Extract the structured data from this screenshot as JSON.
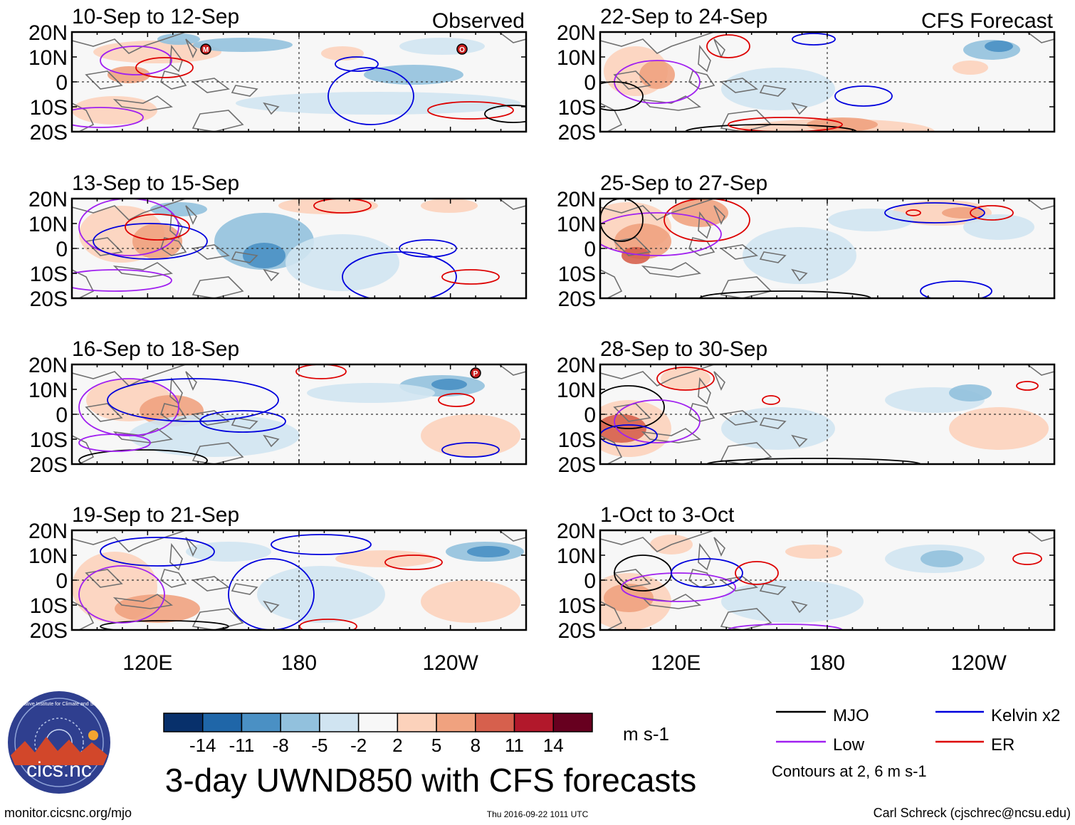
{
  "title": "3-day UWND850 with CFS forecasts",
  "footer": {
    "website": "monitor.cicsnc.org/mjo",
    "timestamp": "Thu 2016-09-22 1011 UTC",
    "author": "Carl Schreck (cjschrec@ncsu.edu)"
  },
  "logo": {
    "name": "cics.nc",
    "ring_text": "Cooperative Institute for Climate and Satellites"
  },
  "colorbar": {
    "unit": "m s-1",
    "tick_labels": [
      "-14",
      "-11",
      "-8",
      "-5",
      "-2",
      "2",
      "5",
      "8",
      "11",
      "14"
    ],
    "bins": [
      "#08306b",
      "#1f66a8",
      "#4a90c4",
      "#92c1dd",
      "#d0e4f1",
      "#f7f7f7",
      "#fcd2bb",
      "#f0a27f",
      "#d6604d",
      "#b2182b",
      "#67001f"
    ]
  },
  "legend": {
    "items": [
      {
        "label": "MJO",
        "color": "#000000"
      },
      {
        "label": "Kelvin x2",
        "color": "#0000dd"
      },
      {
        "label": "Low",
        "color": "#a020f0"
      },
      {
        "label": "ER",
        "color": "#dd0000"
      }
    ],
    "note": "Contours at 2, 6 m s-1"
  },
  "columns": {
    "observed_label": "Observed",
    "forecast_label": "CFS Forecast"
  },
  "axes": {
    "y_tick_labels": [
      "20N",
      "10N",
      "0",
      "10S",
      "20S"
    ],
    "x_tick_labels": [
      "120E",
      "180",
      "120W"
    ]
  },
  "chart_data": [
    {
      "type": "heatmap",
      "title": "10-Sep to 12-Sep",
      "source": "Observed",
      "lon_range": [
        90,
        270
      ],
      "lat_range": [
        -20,
        20
      ],
      "variable": "850-hPa zonal wind anomaly",
      "units": "m s-1",
      "contour_filters": [
        "MJO",
        "Kelvin x2",
        "Low",
        "ER"
      ],
      "contour_levels": [
        2,
        6
      ],
      "storm_markers": [
        "M",
        "O"
      ]
    },
    {
      "type": "heatmap",
      "title": "13-Sep to 15-Sep",
      "source": "Observed",
      "lon_range": [
        90,
        270
      ],
      "lat_range": [
        -20,
        20
      ],
      "variable": "850-hPa zonal wind anomaly",
      "units": "m s-1",
      "contour_filters": [
        "MJO",
        "Kelvin x2",
        "Low",
        "ER"
      ],
      "contour_levels": [
        2,
        6
      ]
    },
    {
      "type": "heatmap",
      "title": "16-Sep to 18-Sep",
      "source": "Observed",
      "lon_range": [
        90,
        270
      ],
      "lat_range": [
        -20,
        20
      ],
      "variable": "850-hPa zonal wind anomaly",
      "units": "m s-1",
      "contour_filters": [
        "MJO",
        "Kelvin x2",
        "Low",
        "ER"
      ],
      "contour_levels": [
        2,
        6
      ],
      "storm_markers": [
        "P"
      ]
    },
    {
      "type": "heatmap",
      "title": "19-Sep to 21-Sep",
      "source": "Observed",
      "lon_range": [
        90,
        270
      ],
      "lat_range": [
        -20,
        20
      ],
      "variable": "850-hPa zonal wind anomaly",
      "units": "m s-1",
      "contour_filters": [
        "MJO",
        "Kelvin x2",
        "Low",
        "ER"
      ],
      "contour_levels": [
        2,
        6
      ]
    },
    {
      "type": "heatmap",
      "title": "22-Sep to 24-Sep",
      "source": "CFS Forecast",
      "lon_range": [
        90,
        270
      ],
      "lat_range": [
        -20,
        20
      ],
      "variable": "850-hPa zonal wind anomaly",
      "units": "m s-1",
      "contour_filters": [
        "MJO",
        "Kelvin x2",
        "Low",
        "ER"
      ],
      "contour_levels": [
        2,
        6
      ]
    },
    {
      "type": "heatmap",
      "title": "25-Sep to 27-Sep",
      "source": "CFS Forecast",
      "lon_range": [
        90,
        270
      ],
      "lat_range": [
        -20,
        20
      ],
      "variable": "850-hPa zonal wind anomaly",
      "units": "m s-1",
      "contour_filters": [
        "MJO",
        "Kelvin x2",
        "Low",
        "ER"
      ],
      "contour_levels": [
        2,
        6
      ]
    },
    {
      "type": "heatmap",
      "title": "28-Sep to 30-Sep",
      "source": "CFS Forecast",
      "lon_range": [
        90,
        270
      ],
      "lat_range": [
        -20,
        20
      ],
      "variable": "850-hPa zonal wind anomaly",
      "units": "m s-1",
      "contour_filters": [
        "MJO",
        "Kelvin x2",
        "Low",
        "ER"
      ],
      "contour_levels": [
        2,
        6
      ]
    },
    {
      "type": "heatmap",
      "title": "1-Oct to 3-Oct",
      "source": "CFS Forecast",
      "lon_range": [
        90,
        270
      ],
      "lat_range": [
        -20,
        20
      ],
      "variable": "850-hPa zonal wind anomaly",
      "units": "m s-1",
      "contour_filters": [
        "MJO",
        "Kelvin x2",
        "Low",
        "ER"
      ],
      "contour_levels": [
        2,
        6
      ]
    }
  ]
}
